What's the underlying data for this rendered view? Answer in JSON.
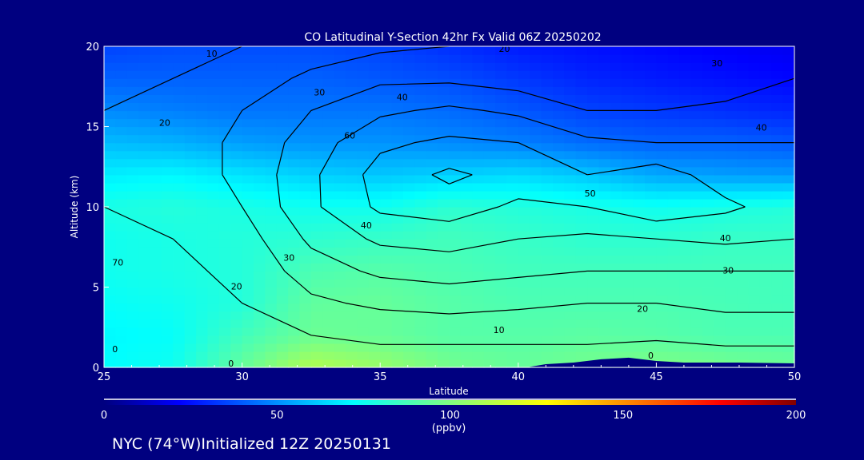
{
  "chart_data": {
    "type": "heatmap",
    "title": "CO Latitudinal Y-Section 42hr  Fx Valid 06Z 20250202",
    "xlabel": "Latitude",
    "ylabel": "Altitude (km)",
    "xlim": [
      25,
      50
    ],
    "ylim": [
      0,
      20
    ],
    "xticks": [
      "25",
      "30",
      "35",
      "40",
      "45",
      "50"
    ],
    "yticks": [
      "0",
      "5",
      "10",
      "15",
      "20"
    ],
    "grid_lat": [
      25,
      27.5,
      30,
      32.5,
      35,
      37.5,
      40,
      42.5,
      45,
      47.5,
      50
    ],
    "grid_alt": [
      0,
      2,
      4,
      6,
      8,
      10,
      12,
      14,
      16,
      18,
      20
    ],
    "fill_values": [
      [
        75,
        78,
        95,
        110,
        105,
        98,
        95,
        98,
        100,
        98,
        96
      ],
      [
        74,
        76,
        88,
        96,
        95,
        92,
        92,
        93,
        92,
        90,
        90
      ],
      [
        76,
        78,
        82,
        94,
        95,
        92,
        90,
        90,
        90,
        89,
        88
      ],
      [
        78,
        80,
        82,
        90,
        92,
        90,
        88,
        88,
        88,
        88,
        88
      ],
      [
        78,
        80,
        82,
        84,
        86,
        88,
        86,
        84,
        84,
        86,
        86
      ],
      [
        80,
        82,
        80,
        78,
        78,
        84,
        82,
        80,
        78,
        80,
        82
      ],
      [
        72,
        74,
        70,
        66,
        64,
        66,
        68,
        64,
        58,
        56,
        55
      ],
      [
        62,
        60,
        56,
        54,
        54,
        52,
        50,
        46,
        44,
        44,
        42
      ],
      [
        52,
        50,
        48,
        48,
        48,
        46,
        42,
        38,
        36,
        34,
        32
      ],
      [
        44,
        44,
        44,
        44,
        42,
        40,
        36,
        32,
        30,
        28,
        26
      ],
      [
        38,
        40,
        40,
        40,
        38,
        34,
        30,
        28,
        26,
        24,
        22
      ]
    ],
    "contour_values": [
      [
        0,
        0,
        0,
        0,
        5,
        5,
        5,
        5,
        0,
        0,
        0
      ],
      [
        0,
        0,
        5,
        10,
        12,
        12,
        12,
        12,
        12,
        15,
        15
      ],
      [
        5,
        5,
        10,
        18,
        22,
        24,
        22,
        20,
        20,
        22,
        22
      ],
      [
        8,
        8,
        12,
        25,
        32,
        34,
        32,
        30,
        30,
        30,
        30
      ],
      [
        8,
        10,
        15,
        32,
        42,
        44,
        40,
        38,
        40,
        42,
        40
      ],
      [
        10,
        12,
        20,
        38,
        52,
        55,
        48,
        50,
        58,
        52,
        45
      ],
      [
        10,
        15,
        22,
        38,
        54,
        62,
        56,
        50,
        55,
        45,
        42
      ],
      [
        12,
        15,
        22,
        35,
        48,
        52,
        50,
        42,
        40,
        40,
        40
      ],
      [
        10,
        14,
        20,
        30,
        38,
        42,
        38,
        30,
        30,
        32,
        35
      ],
      [
        8,
        10,
        15,
        22,
        28,
        28,
        25,
        22,
        22,
        25,
        30
      ],
      [
        5,
        8,
        10,
        15,
        18,
        20,
        20,
        20,
        20,
        22,
        30
      ]
    ],
    "contour_levels": [
      0,
      10,
      20,
      30,
      40,
      50,
      60
    ],
    "contour_labels": [
      {
        "text": "10",
        "lat": 28.9,
        "alt": 19.5
      },
      {
        "text": "20",
        "lat": 27.2,
        "alt": 15.2
      },
      {
        "text": "30",
        "lat": 32.8,
        "alt": 17.1
      },
      {
        "text": "40",
        "lat": 35.8,
        "alt": 16.8
      },
      {
        "text": "60",
        "lat": 33.9,
        "alt": 14.4
      },
      {
        "text": "20",
        "lat": 39.5,
        "alt": 19.8
      },
      {
        "text": "30",
        "lat": 47.2,
        "alt": 18.9
      },
      {
        "text": "40",
        "lat": 48.8,
        "alt": 14.9
      },
      {
        "text": "50",
        "lat": 42.6,
        "alt": 10.8
      },
      {
        "text": "40",
        "lat": 34.5,
        "alt": 8.8
      },
      {
        "text": "30",
        "lat": 31.7,
        "alt": 6.8
      },
      {
        "text": "20",
        "lat": 29.8,
        "alt": 5.0
      },
      {
        "text": "70",
        "lat": 25.5,
        "alt": 6.5
      },
      {
        "text": "0",
        "lat": 25.4,
        "alt": 1.1
      },
      {
        "text": "0",
        "lat": 29.6,
        "alt": 0.2
      },
      {
        "text": "10",
        "lat": 39.3,
        "alt": 2.3
      },
      {
        "text": "20",
        "lat": 44.5,
        "alt": 3.6
      },
      {
        "text": "30",
        "lat": 47.6,
        "alt": 6.0
      },
      {
        "text": "40",
        "lat": 47.5,
        "alt": 8.0
      },
      {
        "text": "0",
        "lat": 44.8,
        "alt": 0.7
      }
    ],
    "colorbar": {
      "range": [
        0,
        200
      ],
      "ticks": [
        "0",
        "50",
        "100",
        "150",
        "200"
      ],
      "units": "(ppbv)",
      "colormap": "jet"
    },
    "footer": "NYC (74°W)Initialized 12Z 20250131"
  },
  "colors": {
    "background": "#000080",
    "terrain": "#000080",
    "contour": "#000000"
  }
}
